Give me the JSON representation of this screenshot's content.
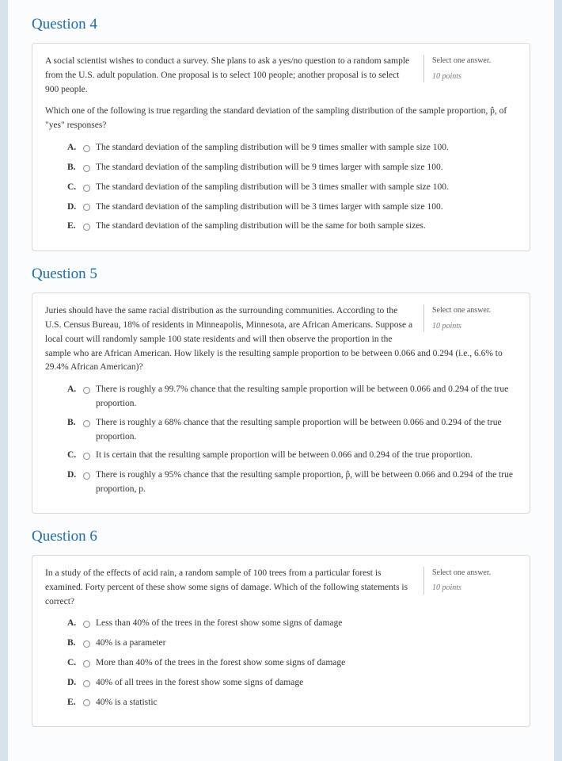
{
  "questions": [
    {
      "title": "Question 4",
      "select_label": "Select one answer.",
      "points_label": "10 points",
      "prompt1": "A social scientist wishes to conduct a survey. She plans to ask a yes/no question to a random sample from the U.S. adult population. One proposal is to select 100 people; another proposal is to select 900 people.",
      "prompt2": "Which one of the following is true regarding the standard deviation of the sampling distribution of the sample proportion, p̂, of \"yes\" responses?",
      "options": [
        {
          "letter": "A.",
          "text": "The standard deviation of the sampling distribution will be 9 times smaller with sample size 100."
        },
        {
          "letter": "B.",
          "text": "The standard deviation of the sampling distribution will be 9 times larger with sample size 100."
        },
        {
          "letter": "C.",
          "text": "The standard deviation of the sampling distribution will be 3 times smaller with sample size 100."
        },
        {
          "letter": "D.",
          "text": "The standard deviation of the sampling distribution will be 3 times larger with sample size 100."
        },
        {
          "letter": "E.",
          "text": "The standard deviation of the sampling distribution will be the same for both sample sizes."
        }
      ]
    },
    {
      "title": "Question 5",
      "select_label": "Select one answer.",
      "points_label": "10 points",
      "prompt1": "Juries should have the same racial distribution as the surrounding communities. According to the U.S. Census Bureau, 18% of residents in Minneapolis, Minnesota, are African Americans. Suppose a local court will randomly sample 100 state residents and will then observe the proportion in the sample who are African American. How likely is the resulting sample proportion to be between 0.066 and 0.294 (i.e., 6.6% to 29.4% African American)?",
      "prompt2": "",
      "options": [
        {
          "letter": "A.",
          "text": "There is roughly a 99.7% chance that the resulting sample proportion will be between 0.066 and 0.294 of the true proportion."
        },
        {
          "letter": "B.",
          "text": "There is roughly a 68% chance that the resulting sample proportion will be between 0.066 and 0.294 of the true proportion."
        },
        {
          "letter": "C.",
          "text": "It is certain that the resulting sample proportion will be between 0.066 and 0.294 of the true proportion."
        },
        {
          "letter": "D.",
          "text": "There is roughly a 95% chance that the resulting sample proportion, p̂, will be between 0.066 and 0.294 of the true proportion, p."
        }
      ]
    },
    {
      "title": "Question 6",
      "select_label": "Select one answer.",
      "points_label": "10 points",
      "prompt1": "In a study of the effects of acid rain, a random sample of 100 trees from a particular forest is examined. Forty percent of these show some signs of damage. Which of the following statements is correct?",
      "prompt2": "",
      "options": [
        {
          "letter": "A.",
          "text": "Less than 40% of the trees in the forest show some signs of damage"
        },
        {
          "letter": "B.",
          "text": "40% is a parameter"
        },
        {
          "letter": "C.",
          "text": "More than 40% of the trees in the forest show some signs of damage"
        },
        {
          "letter": "D.",
          "text": "40% of all trees in the forest show some signs of damage"
        },
        {
          "letter": "E.",
          "text": "40% is a statistic"
        }
      ]
    }
  ]
}
